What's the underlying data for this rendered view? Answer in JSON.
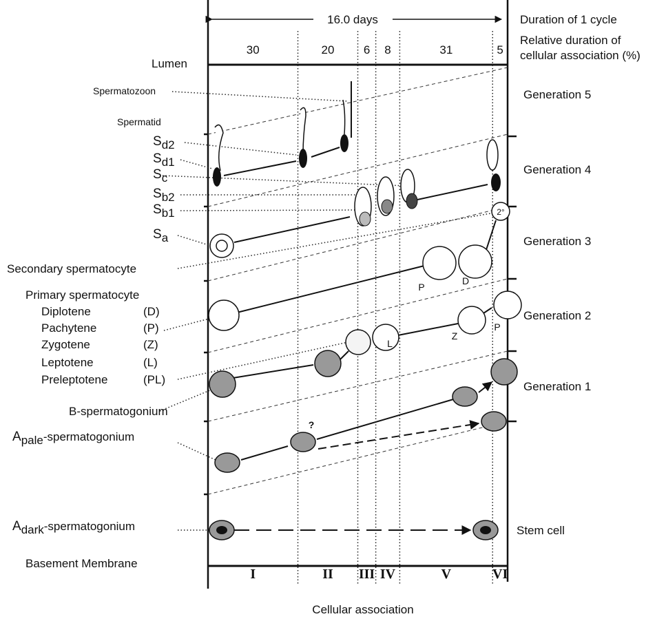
{
  "top": {
    "span": "16.0 days",
    "cycle_label": "Duration of 1 cycle",
    "relative_label": [
      "Relative duration of",
      "cellular association (%)"
    ]
  },
  "columns": [
    {
      "percent": 30,
      "stage": "I"
    },
    {
      "percent": 20,
      "stage": "II"
    },
    {
      "percent": 6,
      "stage": "III"
    },
    {
      "percent": 8,
      "stage": "IV"
    },
    {
      "percent": 31,
      "stage": "V"
    },
    {
      "percent": 5,
      "stage": "VI"
    }
  ],
  "lumen": "Lumen",
  "basement": "Basement Membrane",
  "x_axis": "Cellular association",
  "generations": [
    "Generation 5",
    "Generation 4",
    "Generation 3",
    "Generation 2",
    "Generation 1"
  ],
  "stem_cell": "Stem cell",
  "spermatozoon": "Spermatozoon",
  "spermatid": "Spermatid",
  "spermatid_stages": [
    {
      "base": "S",
      "sub": "d2"
    },
    {
      "base": "S",
      "sub": "d1"
    },
    {
      "base": "S",
      "sub": "c"
    },
    {
      "base": "S",
      "sub": "b2"
    },
    {
      "base": "S",
      "sub": "b1"
    },
    {
      "base": "S",
      "sub": "a"
    }
  ],
  "secondary": "Secondary spermatocyte",
  "primary": "Primary spermatocyte",
  "primary_stages": [
    [
      "Diplotene",
      "(D)"
    ],
    [
      "Pachytene",
      "(P)"
    ],
    [
      "Zygotene",
      "(Z)"
    ],
    [
      "Leptotene",
      "(L)"
    ],
    [
      "Preleptotene",
      "(PL)"
    ]
  ],
  "b_spermatogonium": "B-spermatogonium",
  "a_spermatogonia": [
    {
      "base": "A",
      "sub": "pale",
      "suffix": "-spermatogonium"
    },
    {
      "base": "A",
      "sub": "dark",
      "suffix": "-spermatogonium"
    }
  ],
  "cell_marks": [
    "P",
    "D",
    "L",
    "Z",
    "P",
    "2°",
    "?"
  ]
}
